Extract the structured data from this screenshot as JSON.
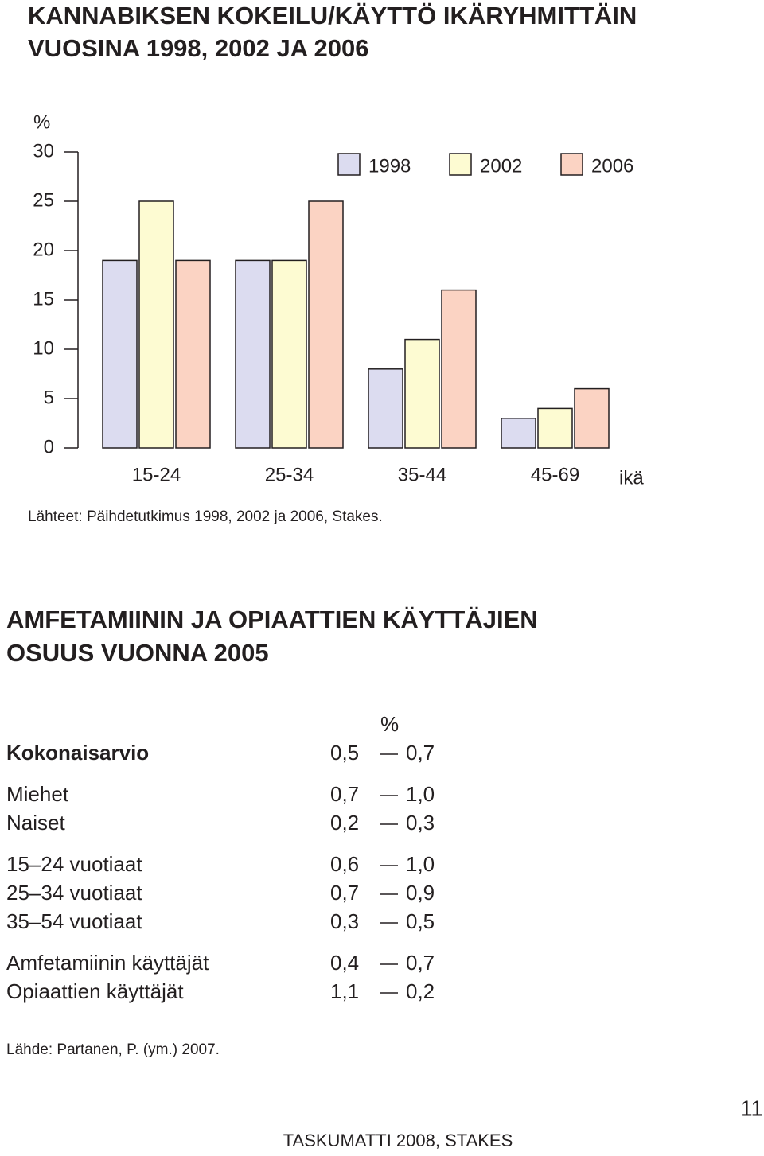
{
  "chart_data": {
    "type": "bar",
    "title": [
      "KANNABIKSEN KOKEILU/KÄYTTÖ IKÄRYHMITTÄIN",
      "VUOSINA 1998, 2002 JA 2006"
    ],
    "y_label": "%",
    "x_label": "ikä",
    "categories": [
      "15-24",
      "25-34",
      "35-44",
      "45-69"
    ],
    "series": [
      {
        "name": "1998",
        "color": "#dcdcf0",
        "values": [
          19,
          19,
          8,
          3
        ]
      },
      {
        "name": "2002",
        "color": "#fdfbd2",
        "values": [
          25,
          19,
          11,
          4
        ]
      },
      {
        "name": "2006",
        "color": "#fbd3c3",
        "values": [
          19,
          25,
          16,
          6
        ]
      }
    ],
    "ylim": [
      0,
      30
    ],
    "yticks": [
      0,
      5,
      10,
      15,
      20,
      25,
      30
    ],
    "source": "Lähteet: Päihdetutkimus 1998, 2002 ja 2006, Stakes."
  },
  "table": {
    "title": [
      "AMFETAMIININ JA OPIAATTIEN KÄYTTÄJIEN",
      "OSUUS VUONNA 2005"
    ],
    "unit": "%",
    "groups": [
      [
        {
          "label": "Kokonaisarvio",
          "low": "0,5",
          "high": "0,7"
        }
      ],
      [
        {
          "label": "Miehet",
          "low": "0,7",
          "high": "1,0"
        },
        {
          "label": "Naiset",
          "low": "0,2",
          "high": "0,3"
        }
      ],
      [
        {
          "label": "15–24 vuotiaat",
          "low": "0,6",
          "high": "1,0"
        },
        {
          "label": "25–34 vuotiaat",
          "low": "0,7",
          "high": "0,9"
        },
        {
          "label": "35–54 vuotiaat",
          "low": "0,3",
          "high": "0,5"
        }
      ],
      [
        {
          "label": "Amfetamiinin käyttäjät",
          "low": "0,4",
          "high": "0,7"
        },
        {
          "label": "Opiaattien käyttäjät",
          "low": "1,1",
          "high": "0,2"
        }
      ]
    ],
    "source": "Lähde: Partanen, P. (ym.) 2007."
  },
  "footer": {
    "page_number": "11",
    "text": "TASKUMATTI 2008, STAKES"
  }
}
